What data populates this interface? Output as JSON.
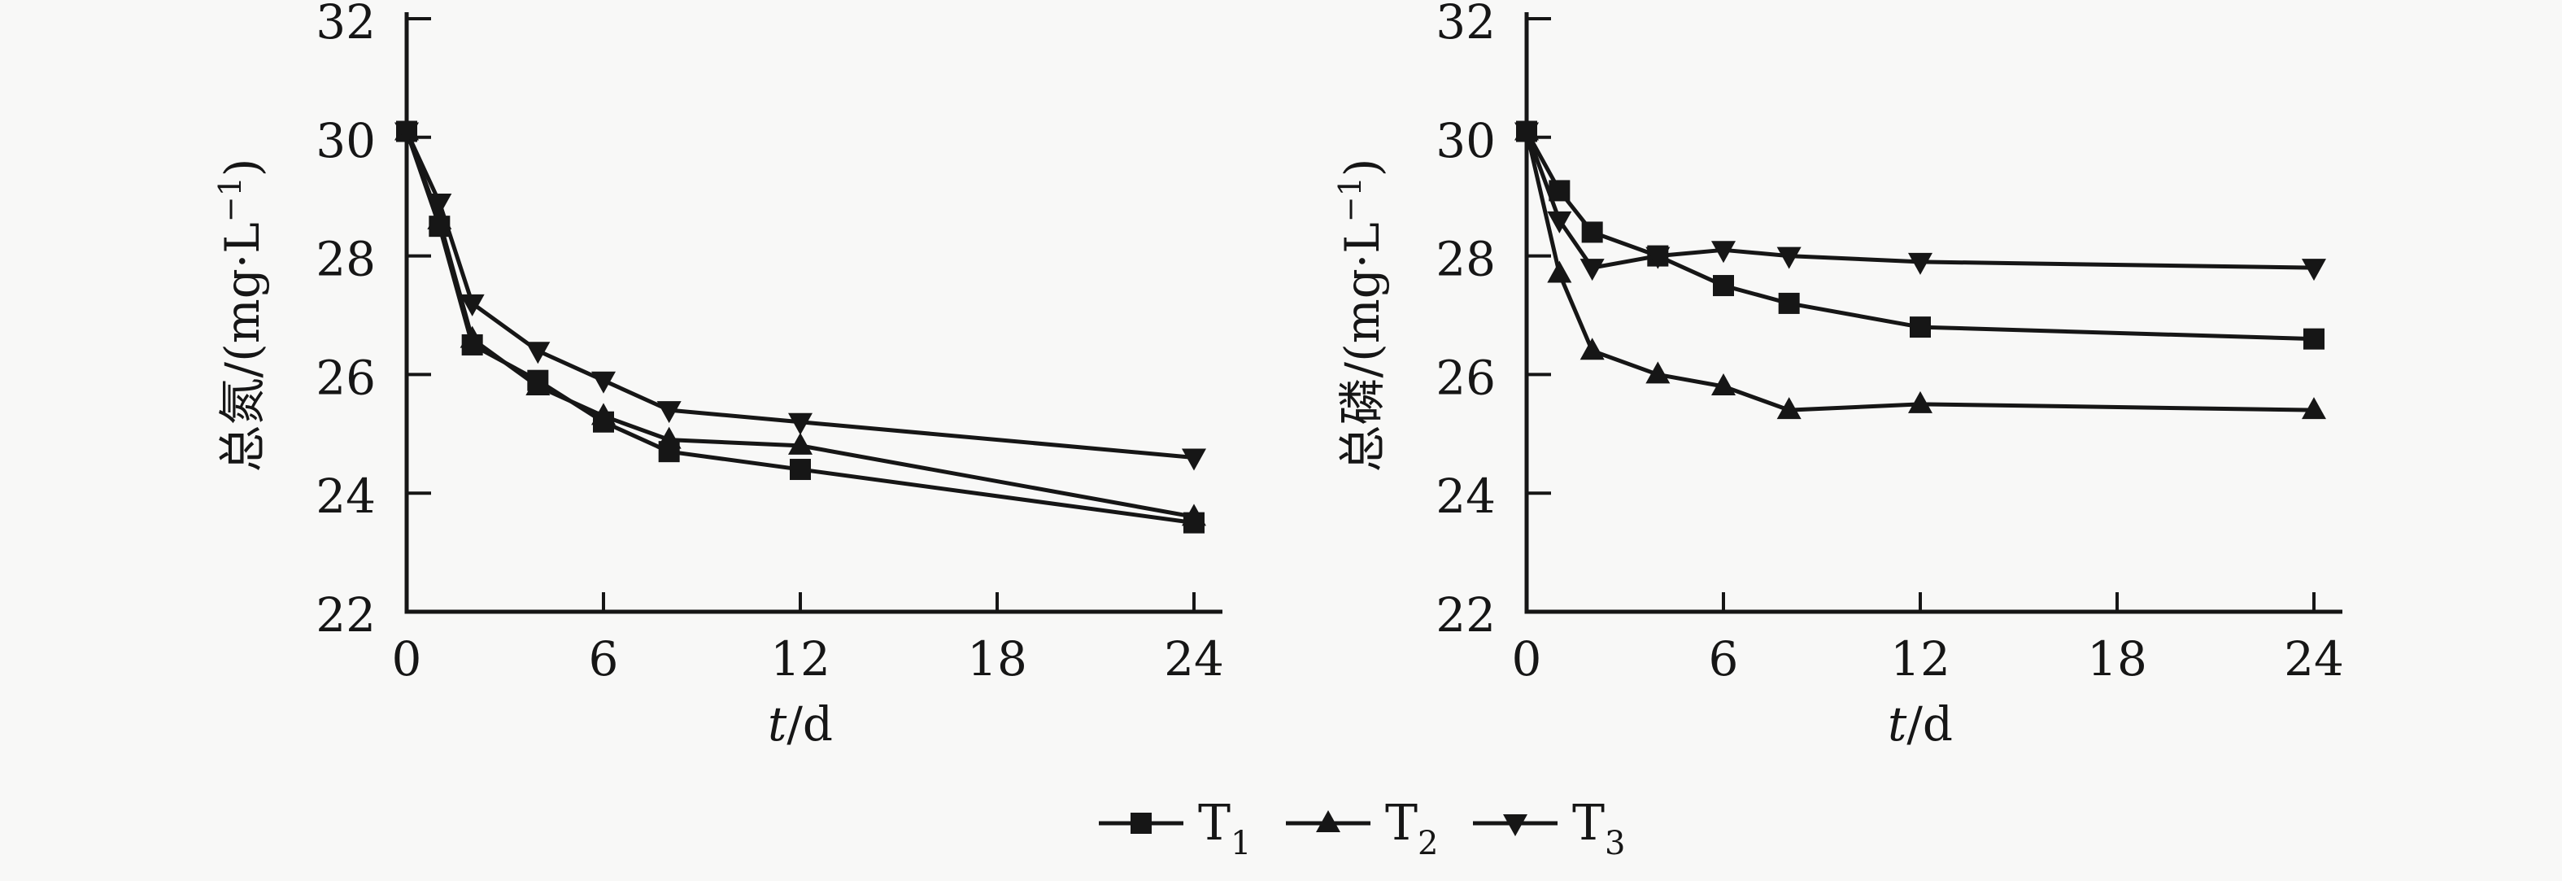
{
  "figure": {
    "background": "#f8f8f7",
    "ink": "#161616",
    "marker_color": "#1a1a1a"
  },
  "chart_data": [
    {
      "id": "total-nitrogen",
      "type": "line",
      "title": "",
      "xlabel": {
        "variable": "t",
        "unit": "/d"
      },
      "ylabel": {
        "text": "总氮/(mg·L⁻¹)",
        "prefix": "总氮/(mg·L",
        "superscript": "−1",
        "suffix": ")"
      },
      "x": [
        0,
        1,
        2,
        4,
        6,
        8,
        12,
        24
      ],
      "xticks": [
        "0",
        "6",
        "12",
        "18",
        "24"
      ],
      "xtick_values": [
        0,
        6,
        12,
        18,
        24
      ],
      "yticks": [
        "22",
        "24",
        "26",
        "28",
        "30",
        "32"
      ],
      "ytick_values": [
        22,
        24,
        26,
        28,
        30,
        32
      ],
      "xlim": [
        0,
        24.9
      ],
      "ylim": [
        22,
        32
      ],
      "grid": false,
      "series": [
        {
          "name": "T1",
          "marker": "square",
          "values": [
            30.1,
            28.5,
            26.5,
            25.9,
            25.2,
            24.7,
            24.4,
            23.5
          ]
        },
        {
          "name": "T2",
          "marker": "triangle-up",
          "values": [
            30.1,
            28.6,
            26.6,
            25.8,
            25.3,
            24.9,
            24.8,
            23.6
          ]
        },
        {
          "name": "T3",
          "marker": "triangle-down",
          "values": [
            30.1,
            28.9,
            27.2,
            26.4,
            25.9,
            25.4,
            25.2,
            24.6
          ]
        }
      ]
    },
    {
      "id": "total-phosphorus",
      "type": "line",
      "title": "",
      "xlabel": {
        "variable": "t",
        "unit": "/d"
      },
      "ylabel": {
        "text": "总磷/(mg·L⁻¹)",
        "prefix": "总磷/(mg·L",
        "superscript": "−1",
        "suffix": ")"
      },
      "x": [
        0,
        1,
        2,
        4,
        6,
        8,
        12,
        24
      ],
      "xticks": [
        "0",
        "6",
        "12",
        "18",
        "24"
      ],
      "xtick_values": [
        0,
        6,
        12,
        18,
        24
      ],
      "yticks": [
        "22",
        "24",
        "26",
        "28",
        "30",
        "32"
      ],
      "ytick_values": [
        22,
        24,
        26,
        28,
        30,
        32
      ],
      "xlim": [
        0,
        24.9
      ],
      "ylim": [
        22,
        32
      ],
      "grid": false,
      "series": [
        {
          "name": "T1",
          "marker": "square",
          "values": [
            30.1,
            29.1,
            28.4,
            28.0,
            27.5,
            27.2,
            26.8,
            26.6
          ]
        },
        {
          "name": "T2",
          "marker": "triangle-up",
          "values": [
            30.1,
            27.7,
            26.4,
            26.0,
            25.8,
            25.4,
            25.5,
            25.4
          ]
        },
        {
          "name": "T3",
          "marker": "triangle-down",
          "values": [
            30.1,
            28.6,
            27.8,
            28.0,
            28.1,
            28.0,
            27.9,
            27.8
          ]
        }
      ]
    }
  ],
  "legend": {
    "position": "shared-bottom-center",
    "items": [
      {
        "series": "T1",
        "label": "T",
        "subscript": "1",
        "marker": "square"
      },
      {
        "series": "T2",
        "label": "T",
        "subscript": "2",
        "marker": "triangle-up"
      },
      {
        "series": "T3",
        "label": "T",
        "subscript": "3",
        "marker": "triangle-down"
      }
    ]
  }
}
